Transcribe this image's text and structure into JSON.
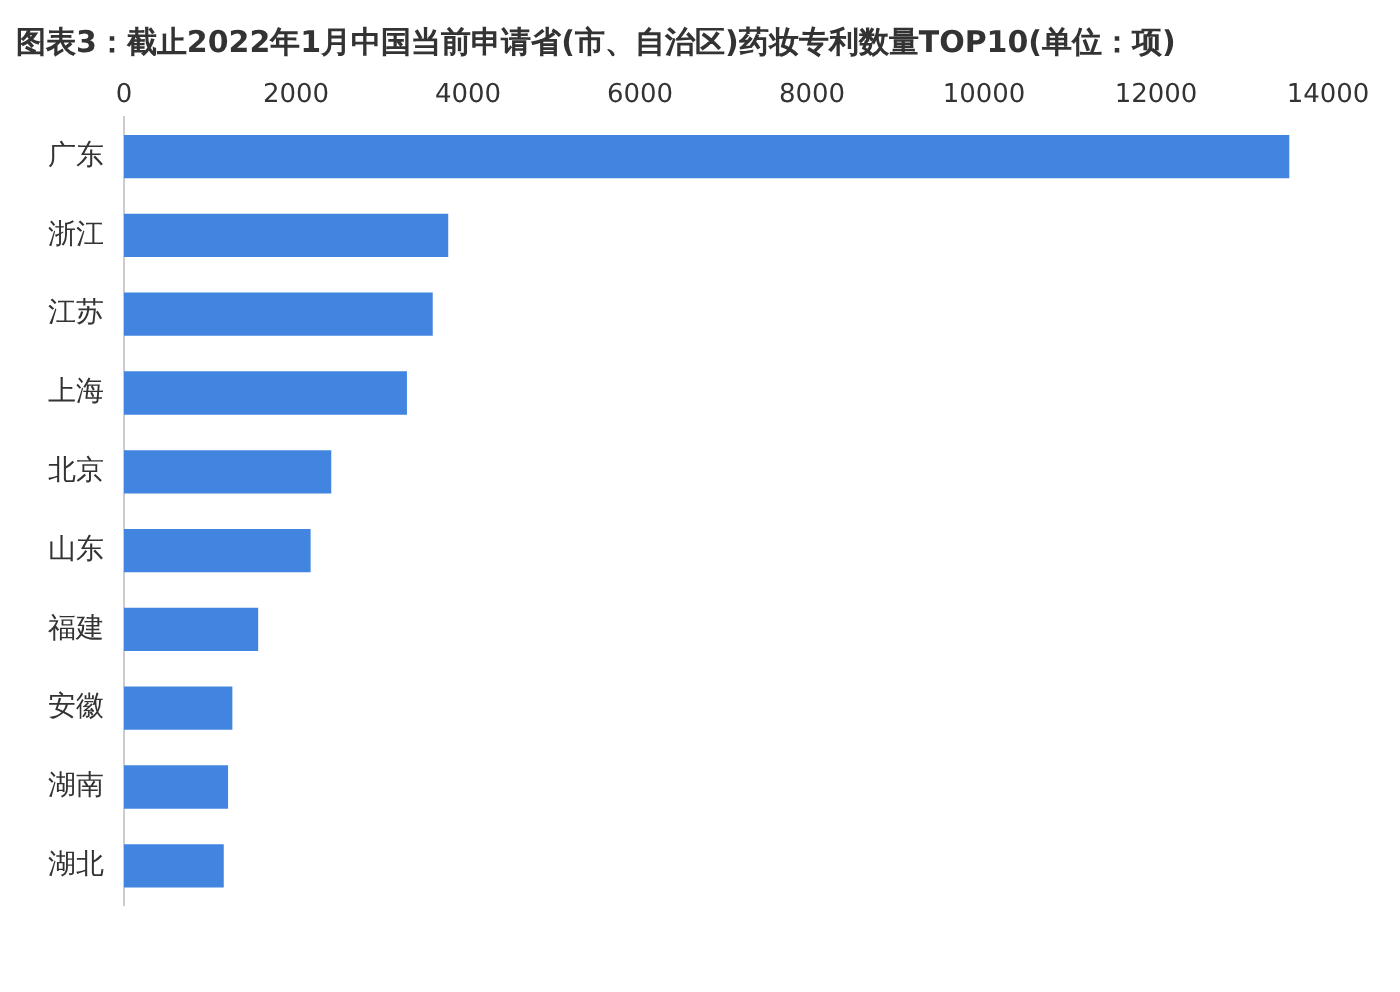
{
  "chart_data": {
    "type": "bar",
    "orientation": "horizontal",
    "title": "图表3：截止2022年1月中国当前申请省(市、自治区)药妆专利数量TOP10(单位：项)",
    "categories": [
      "广东",
      "浙江",
      "江苏",
      "上海",
      "北京",
      "山东",
      "福建",
      "安徽",
      "湖南",
      "湖北"
    ],
    "values": [
      13550,
      3770,
      3590,
      3290,
      2410,
      2170,
      1560,
      1260,
      1210,
      1160
    ],
    "color": "#4285e0",
    "xlim": [
      0,
      14000
    ],
    "xticks": [
      0,
      2000,
      4000,
      6000,
      8000,
      10000,
      12000,
      14000
    ],
    "grid": false,
    "legend": false
  }
}
